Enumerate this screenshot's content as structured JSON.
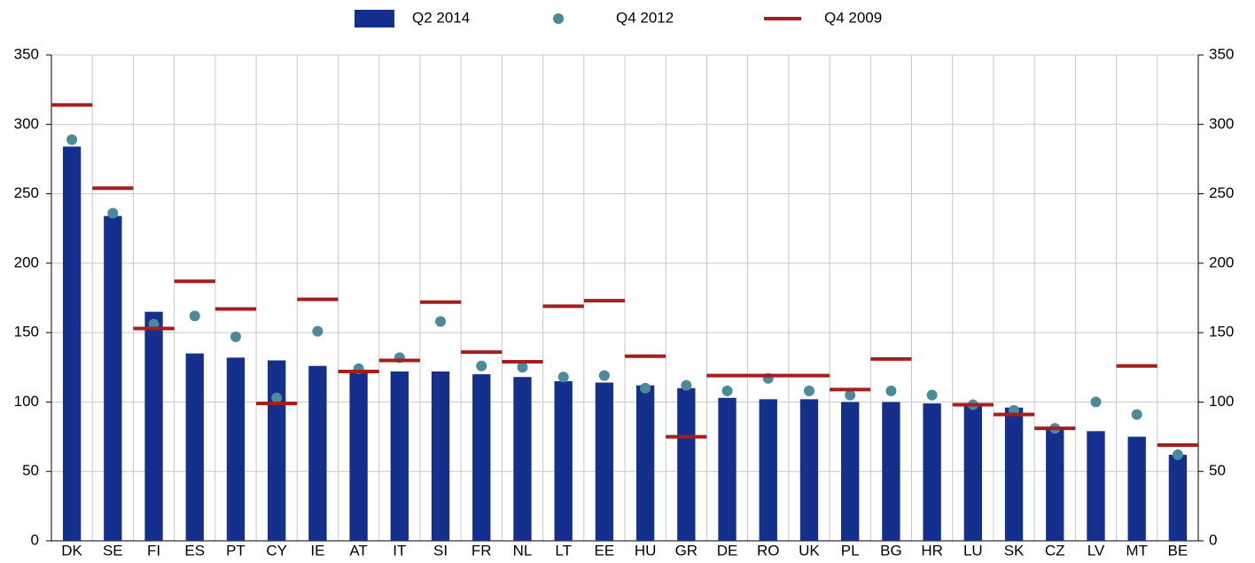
{
  "chart_data": {
    "type": "bar",
    "categories": [
      "DK",
      "SE",
      "FI",
      "ES",
      "PT",
      "CY",
      "IE",
      "AT",
      "IT",
      "SI",
      "FR",
      "NL",
      "LT",
      "EE",
      "HU",
      "GR",
      "DE",
      "RO",
      "UK",
      "PL",
      "BG",
      "HR",
      "LU",
      "SK",
      "CZ",
      "LV",
      "MT",
      "BE"
    ],
    "series": [
      {
        "name": "Q2 2014",
        "color": "#14308c",
        "mark": "bar",
        "values": [
          284,
          234,
          165,
          135,
          132,
          130,
          126,
          122,
          122,
          122,
          120,
          118,
          115,
          114,
          112,
          110,
          103,
          102,
          102,
          100,
          100,
          99,
          98,
          96,
          82,
          79,
          75,
          62
        ]
      },
      {
        "name": "Q4 2012",
        "color": "#4a8a9a",
        "mark": "dot",
        "values": [
          289,
          236,
          156,
          162,
          147,
          103,
          151,
          124,
          132,
          158,
          126,
          125,
          118,
          119,
          110,
          112,
          108,
          117,
          108,
          105,
          108,
          105,
          98,
          94,
          81,
          100,
          91,
          62
        ]
      },
      {
        "name": "Q4 2009",
        "color": "#a51d1d",
        "mark": "dash",
        "values": [
          314,
          254,
          153,
          187,
          167,
          99,
          174,
          122,
          130,
          172,
          136,
          129,
          169,
          173,
          133,
          75,
          119,
          119,
          119,
          109,
          131,
          null,
          98,
          91,
          81,
          null,
          126,
          69
        ]
      }
    ],
    "ylim": [
      0,
      350
    ],
    "yticks": [
      0,
      50,
      100,
      150,
      200,
      250,
      300,
      350
    ],
    "grid": true
  }
}
